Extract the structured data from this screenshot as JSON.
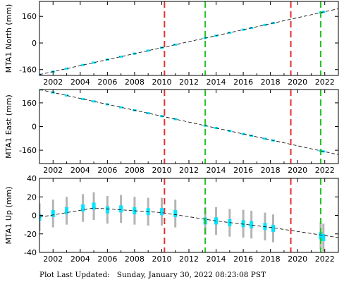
{
  "footer": {
    "prefix": "Plot Last Updated:",
    "timestamp": "Sunday, January 30, 2022 08:23:08 PST"
  },
  "colors": {
    "data": "#00e5ff",
    "error_bar": "#b4b4b4",
    "model": "#000000",
    "red_marker": "#e53030",
    "green_marker": "#22c222"
  },
  "chart_data": [
    {
      "type": "scatter",
      "ylabel": "MTA1 North (mm)",
      "xlim": [
        2001,
        2023
      ],
      "ylim": [
        -195,
        250
      ],
      "yticks": [
        -160,
        0,
        160
      ],
      "xticks": [
        2002,
        2004,
        2006,
        2008,
        2010,
        2012,
        2014,
        2016,
        2018,
        2020,
        2022
      ],
      "grid": false,
      "series": [
        {
          "values": [
            [
              2001.0,
              -190
            ],
            [
              2002.0,
              -172
            ],
            [
              2003.0,
              -154
            ],
            [
              2004.2,
              -132
            ],
            [
              2005.0,
              -118
            ],
            [
              2006.0,
              -100
            ],
            [
              2007.0,
              -82
            ],
            [
              2008.0,
              -64
            ],
            [
              2009.0,
              -46
            ],
            [
              2010.0,
              -28
            ],
            [
              2011.0,
              -10
            ],
            [
              2013.2,
              30
            ],
            [
              2014.0,
              44
            ],
            [
              2015.0,
              62
            ],
            [
              2016.0,
              80
            ],
            [
              2016.6,
              91
            ],
            [
              2017.6,
              109
            ],
            [
              2018.2,
              120
            ],
            [
              2021.7,
              183
            ],
            [
              2021.9,
              187
            ]
          ]
        }
      ],
      "model_line": [
        [
          2001.0,
          -190
        ],
        [
          2023.0,
          206
        ]
      ],
      "red_markers": [
        2010.2,
        2019.5
      ],
      "green_markers": [
        2013.2,
        2021.7
      ]
    },
    {
      "type": "scatter",
      "ylabel": "MTA1 East (mm)",
      "xlim": [
        2001,
        2023
      ],
      "ylim": [
        -250,
        250
      ],
      "yticks": [
        -160,
        0,
        160
      ],
      "xticks": [
        2002,
        2004,
        2006,
        2008,
        2010,
        2012,
        2014,
        2016,
        2018,
        2020,
        2022
      ],
      "grid": false,
      "series": [
        {
          "values": [
            [
              2001.0,
              250
            ],
            [
              2002.0,
              230
            ],
            [
              2003.0,
              210
            ],
            [
              2004.2,
              186
            ],
            [
              2005.0,
              170
            ],
            [
              2006.0,
              150
            ],
            [
              2007.0,
              130
            ],
            [
              2008.0,
              110
            ],
            [
              2009.0,
              90
            ],
            [
              2010.0,
              70
            ],
            [
              2011.0,
              50
            ],
            [
              2013.2,
              6
            ],
            [
              2014.0,
              -10
            ],
            [
              2015.0,
              -30
            ],
            [
              2016.0,
              -50
            ],
            [
              2016.6,
              -62
            ],
            [
              2017.6,
              -82
            ],
            [
              2018.2,
              -94
            ],
            [
              2021.7,
              -164
            ],
            [
              2021.9,
              -168
            ]
          ]
        }
      ],
      "model_line": [
        [
          2001.0,
          250
        ],
        [
          2023.0,
          -190
        ]
      ],
      "red_markers": [
        2010.2,
        2019.5
      ],
      "green_markers": [
        2013.2,
        2021.7
      ]
    },
    {
      "type": "scatter",
      "ylabel": "MTA1 Up (mm)",
      "xlim": [
        2001,
        2023
      ],
      "ylim": [
        -40,
        40
      ],
      "yticks": [
        -40,
        -20,
        0,
        20,
        40
      ],
      "xticks": [
        2002,
        2004,
        2006,
        2008,
        2010,
        2012,
        2014,
        2016,
        2018,
        2020,
        2022
      ],
      "grid": false,
      "series": [
        {
          "values": [
            [
              2001.0,
              -2
            ],
            [
              2002.0,
              2
            ],
            [
              2003.0,
              5
            ],
            [
              2004.2,
              8
            ],
            [
              2005.0,
              10
            ],
            [
              2006.0,
              6
            ],
            [
              2007.0,
              7
            ],
            [
              2008.0,
              5
            ],
            [
              2009.0,
              4
            ],
            [
              2010.0,
              4
            ],
            [
              2011.0,
              2
            ],
            [
              2013.2,
              -6
            ],
            [
              2014.0,
              -6
            ],
            [
              2015.0,
              -8
            ],
            [
              2016.0,
              -9
            ],
            [
              2016.6,
              -10
            ],
            [
              2017.6,
              -12
            ],
            [
              2018.2,
              -14
            ],
            [
              2021.7,
              -22
            ],
            [
              2021.9,
              -24
            ]
          ]
        }
      ],
      "model_line": [
        [
          2001.0,
          -2
        ],
        [
          2005.0,
          8
        ],
        [
          2010.0,
          3
        ],
        [
          2014.0,
          -6
        ],
        [
          2018.0,
          -13
        ],
        [
          2023.0,
          -24
        ]
      ],
      "red_markers": [
        2010.2,
        2019.5
      ],
      "green_markers": [
        2013.2,
        2021.7
      ]
    }
  ]
}
